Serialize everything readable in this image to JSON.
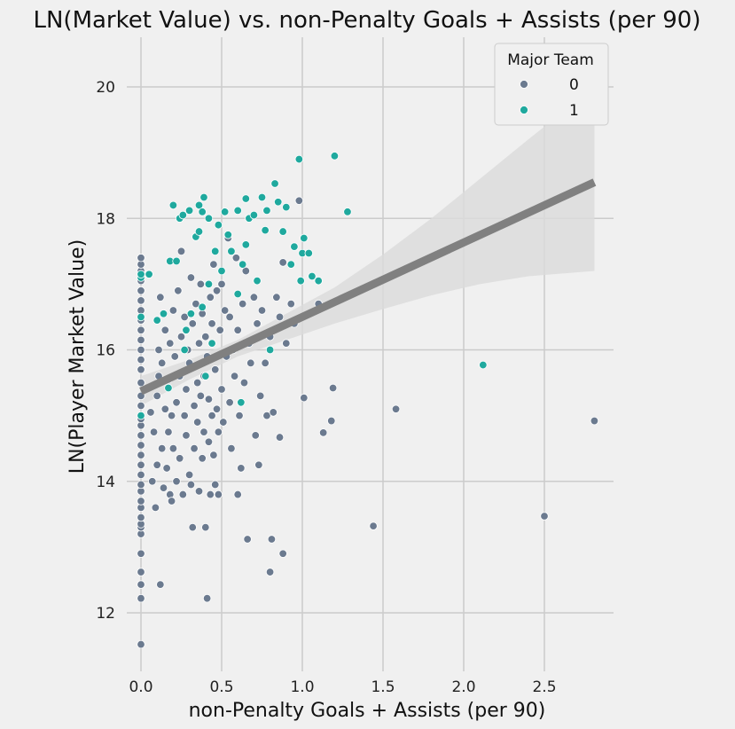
{
  "chart_data": {
    "type": "scatter",
    "title": "LN(Market Value) vs. non-Penalty Goals + Assists (per 90)",
    "xlabel": "non-Penalty Goals + Assists (per 90)",
    "ylabel": "LN(Player Market Value)",
    "xlim": [
      -0.12,
      2.95
    ],
    "ylim": [
      11.3,
      20.7
    ],
    "xticks": [
      "0.0",
      "0.5",
      "1.0",
      "1.5",
      "2.0",
      "2.5"
    ],
    "xtick_values": [
      0,
      0.5,
      1.0,
      1.5,
      2.0,
      2.5
    ],
    "yticks": [
      "12",
      "14",
      "16",
      "18",
      "20"
    ],
    "ytick_values": [
      12,
      14,
      16,
      18,
      20
    ],
    "grid": true,
    "legend": {
      "title": "Major Team",
      "placement": "top-right",
      "entries": [
        "0",
        "1"
      ]
    },
    "colors": {
      "0": "#6b7a8f",
      "1": "#1fa99e",
      "regression": "#808080",
      "ci_band": "#dcdcdc"
    },
    "regression": {
      "x": [
        0,
        2.81
      ],
      "y": [
        15.37,
        18.55
      ],
      "ci_lower_end": 17.2,
      "ci_upper_end": 20.0,
      "ci_x": [
        0,
        0.3,
        0.6,
        0.9,
        1.2,
        1.5,
        1.8,
        2.1,
        2.4,
        2.81
      ],
      "ci_low": [
        15.15,
        15.55,
        15.9,
        16.15,
        16.4,
        16.62,
        16.83,
        17.0,
        17.12,
        17.2
      ],
      "ci_high": [
        15.6,
        15.85,
        16.15,
        16.55,
        16.95,
        17.45,
        18.0,
        18.6,
        19.2,
        20.0
      ]
    },
    "series": [
      {
        "name": "0",
        "points": [
          [
            0,
            11.52
          ],
          [
            0,
            12.22
          ],
          [
            0,
            12.43
          ],
          [
            0,
            12.62
          ],
          [
            0,
            12.9
          ],
          [
            0,
            13.2
          ],
          [
            0,
            13.3
          ],
          [
            0,
            13.35
          ],
          [
            0,
            13.45
          ],
          [
            0,
            13.6
          ],
          [
            0,
            13.7
          ],
          [
            0,
            13.85
          ],
          [
            0,
            13.95
          ],
          [
            0,
            14.1
          ],
          [
            0,
            14.25
          ],
          [
            0,
            14.4
          ],
          [
            0,
            14.55
          ],
          [
            0,
            14.7
          ],
          [
            0,
            14.85
          ],
          [
            0,
            14.95
          ],
          [
            0,
            15.15
          ],
          [
            0,
            15.3
          ],
          [
            0,
            15.5
          ],
          [
            0,
            15.7
          ],
          [
            0,
            15.85
          ],
          [
            0,
            16.0
          ],
          [
            0,
            16.15
          ],
          [
            0,
            16.3
          ],
          [
            0,
            16.45
          ],
          [
            0,
            16.6
          ],
          [
            0,
            16.75
          ],
          [
            0,
            16.9
          ],
          [
            0,
            17.05
          ],
          [
            0,
            17.2
          ],
          [
            0,
            17.3
          ],
          [
            0,
            17.4
          ],
          [
            0.06,
            15.05
          ],
          [
            0.07,
            14.0
          ],
          [
            0.08,
            14.75
          ],
          [
            0.09,
            13.6
          ],
          [
            0.1,
            14.25
          ],
          [
            0.1,
            15.3
          ],
          [
            0.11,
            16.0
          ],
          [
            0.11,
            15.6
          ],
          [
            0.12,
            16.8
          ],
          [
            0.12,
            12.43
          ],
          [
            0.13,
            14.5
          ],
          [
            0.13,
            15.8
          ],
          [
            0.14,
            13.9
          ],
          [
            0.15,
            15.1
          ],
          [
            0.15,
            16.3
          ],
          [
            0.16,
            14.2
          ],
          [
            0.17,
            14.75
          ],
          [
            0.17,
            15.55
          ],
          [
            0.18,
            13.8
          ],
          [
            0.18,
            16.1
          ],
          [
            0.19,
            15.0
          ],
          [
            0.19,
            13.7
          ],
          [
            0.2,
            16.6
          ],
          [
            0.2,
            14.5
          ],
          [
            0.21,
            15.9
          ],
          [
            0.22,
            15.2
          ],
          [
            0.22,
            14.0
          ],
          [
            0.23,
            16.9
          ],
          [
            0.24,
            15.6
          ],
          [
            0.24,
            14.35
          ],
          [
            0.25,
            16.2
          ],
          [
            0.25,
            17.5
          ],
          [
            0.26,
            13.8
          ],
          [
            0.27,
            15.0
          ],
          [
            0.27,
            16.5
          ],
          [
            0.28,
            14.7
          ],
          [
            0.28,
            15.4
          ],
          [
            0.29,
            16.0
          ],
          [
            0.3,
            14.1
          ],
          [
            0.3,
            15.8
          ],
          [
            0.31,
            17.1
          ],
          [
            0.31,
            13.95
          ],
          [
            0.32,
            13.3
          ],
          [
            0.32,
            16.4
          ],
          [
            0.33,
            15.15
          ],
          [
            0.33,
            14.5
          ],
          [
            0.34,
            16.7
          ],
          [
            0.35,
            15.5
          ],
          [
            0.35,
            14.9
          ],
          [
            0.36,
            16.1
          ],
          [
            0.36,
            13.85
          ],
          [
            0.37,
            15.3
          ],
          [
            0.37,
            17.0
          ],
          [
            0.38,
            14.35
          ],
          [
            0.38,
            16.55
          ],
          [
            0.39,
            15.6
          ],
          [
            0.39,
            14.75
          ],
          [
            0.4,
            16.2
          ],
          [
            0.4,
            13.3
          ],
          [
            0.41,
            15.9
          ],
          [
            0.41,
            12.22
          ],
          [
            0.42,
            14.6
          ],
          [
            0.42,
            15.25
          ],
          [
            0.43,
            16.8
          ],
          [
            0.43,
            13.8
          ],
          [
            0.44,
            15.0
          ],
          [
            0.44,
            16.4
          ],
          [
            0.45,
            14.4
          ],
          [
            0.45,
            17.3
          ],
          [
            0.46,
            15.7
          ],
          [
            0.46,
            13.95
          ],
          [
            0.47,
            16.9
          ],
          [
            0.47,
            15.1
          ],
          [
            0.48,
            14.75
          ],
          [
            0.48,
            13.8
          ],
          [
            0.49,
            16.3
          ],
          [
            0.5,
            15.4
          ],
          [
            0.5,
            17.0
          ],
          [
            0.51,
            14.9
          ],
          [
            0.52,
            16.6
          ],
          [
            0.53,
            15.9
          ],
          [
            0.54,
            17.7
          ],
          [
            0.55,
            15.2
          ],
          [
            0.55,
            16.5
          ],
          [
            0.56,
            14.5
          ],
          [
            0.57,
            16.0
          ],
          [
            0.58,
            15.6
          ],
          [
            0.59,
            17.4
          ],
          [
            0.6,
            13.8
          ],
          [
            0.6,
            16.3
          ],
          [
            0.61,
            15.0
          ],
          [
            0.62,
            14.2
          ],
          [
            0.63,
            16.7
          ],
          [
            0.64,
            15.5
          ],
          [
            0.65,
            17.2
          ],
          [
            0.66,
            13.12
          ],
          [
            0.67,
            16.1
          ],
          [
            0.68,
            15.8
          ],
          [
            0.7,
            16.8
          ],
          [
            0.71,
            14.7
          ],
          [
            0.72,
            16.4
          ],
          [
            0.73,
            14.25
          ],
          [
            0.74,
            15.3
          ],
          [
            0.75,
            16.6
          ],
          [
            0.77,
            15.8
          ],
          [
            0.78,
            15.0
          ],
          [
            0.8,
            12.62
          ],
          [
            0.8,
            16.2
          ],
          [
            0.81,
            13.12
          ],
          [
            0.82,
            15.05
          ],
          [
            0.84,
            16.8
          ],
          [
            0.86,
            14.67
          ],
          [
            0.86,
            16.5
          ],
          [
            0.88,
            12.9
          ],
          [
            0.88,
            17.33
          ],
          [
            0.9,
            16.1
          ],
          [
            0.93,
            16.7
          ],
          [
            0.95,
            16.4
          ],
          [
            0.98,
            18.27
          ],
          [
            1.01,
            15.27
          ],
          [
            1.1,
            16.7
          ],
          [
            1.13,
            14.74
          ],
          [
            1.18,
            14.92
          ],
          [
            1.19,
            15.42
          ],
          [
            1.44,
            13.32
          ],
          [
            1.58,
            15.1
          ],
          [
            2.5,
            13.47
          ],
          [
            2.81,
            14.92
          ]
        ]
      },
      {
        "name": "1",
        "points": [
          [
            0,
            15.0
          ],
          [
            0,
            16.5
          ],
          [
            0,
            17.1
          ],
          [
            0,
            17.15
          ],
          [
            0.05,
            17.15
          ],
          [
            0.1,
            16.45
          ],
          [
            0.14,
            16.55
          ],
          [
            0.17,
            15.42
          ],
          [
            0.18,
            17.35
          ],
          [
            0.2,
            18.2
          ],
          [
            0.22,
            17.35
          ],
          [
            0.24,
            18.0
          ],
          [
            0.26,
            18.05
          ],
          [
            0.27,
            16.0
          ],
          [
            0.28,
            16.3
          ],
          [
            0.3,
            18.12
          ],
          [
            0.31,
            16.55
          ],
          [
            0.34,
            17.72
          ],
          [
            0.36,
            17.8
          ],
          [
            0.36,
            18.2
          ],
          [
            0.38,
            18.1
          ],
          [
            0.38,
            16.65
          ],
          [
            0.39,
            18.32
          ],
          [
            0.4,
            15.6
          ],
          [
            0.42,
            17.0
          ],
          [
            0.42,
            18.0
          ],
          [
            0.44,
            16.1
          ],
          [
            0.46,
            17.5
          ],
          [
            0.48,
            17.9
          ],
          [
            0.5,
            17.2
          ],
          [
            0.52,
            18.1
          ],
          [
            0.54,
            17.75
          ],
          [
            0.56,
            17.5
          ],
          [
            0.6,
            18.12
          ],
          [
            0.6,
            16.85
          ],
          [
            0.62,
            15.2
          ],
          [
            0.63,
            17.3
          ],
          [
            0.65,
            18.3
          ],
          [
            0.65,
            17.6
          ],
          [
            0.67,
            18.0
          ],
          [
            0.7,
            18.05
          ],
          [
            0.72,
            17.05
          ],
          [
            0.75,
            18.32
          ],
          [
            0.77,
            17.82
          ],
          [
            0.78,
            18.12
          ],
          [
            0.8,
            16.0
          ],
          [
            0.83,
            18.53
          ],
          [
            0.85,
            18.25
          ],
          [
            0.88,
            17.8
          ],
          [
            0.9,
            18.17
          ],
          [
            0.93,
            17.3
          ],
          [
            0.95,
            17.57
          ],
          [
            0.98,
            18.9
          ],
          [
            0.99,
            17.05
          ],
          [
            1.0,
            17.47
          ],
          [
            1.01,
            17.7
          ],
          [
            1.04,
            17.47
          ],
          [
            1.06,
            17.12
          ],
          [
            1.1,
            17.05
          ],
          [
            1.2,
            18.95
          ],
          [
            1.28,
            18.1
          ],
          [
            2.12,
            15.77
          ]
        ]
      }
    ]
  }
}
